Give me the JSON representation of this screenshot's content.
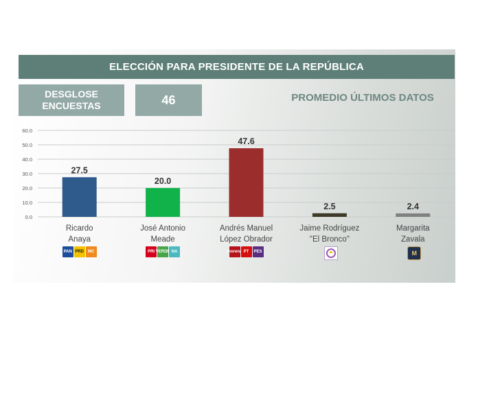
{
  "header": {
    "title": "ELECCIÓN PARA PRESIDENTE DE LA REPÚBLICA",
    "desglose_label": "DESGLOSE ENCUESTAS",
    "count": "46",
    "promedio_label": "PROMEDIO ÚLTIMOS DATOS"
  },
  "colors": {
    "banner": "#5e7f77",
    "box": "#93a9a5"
  },
  "chart_data": {
    "type": "bar",
    "categories": [
      "Ricardo\nAnaya",
      "José Antonio\nMeade",
      "Andrés Manuel\nLópez Obrador",
      "Jaime Rodríguez\n\"El Bronco\"",
      "Margarita\nZavala"
    ],
    "values": [
      27.5,
      20.0,
      47.6,
      2.5,
      2.4
    ],
    "value_labels": [
      "27.5",
      "20.0",
      "47.6",
      "2.5",
      "2.4"
    ],
    "colors": [
      "#2e5a8c",
      "#12b24b",
      "#9b2d2d",
      "#3e3a28",
      "#808080"
    ],
    "ylim": [
      0,
      60
    ],
    "yticks": [
      "0.0",
      "10.0",
      "20.0",
      "30.0",
      "40.0",
      "50.0",
      "60.0"
    ],
    "grid": true,
    "title": "",
    "xlabel": "",
    "ylabel": ""
  },
  "party_logos": [
    [
      {
        "icon": "pan-logo",
        "text": "PAN",
        "color": "#1c4c9c"
      },
      {
        "icon": "prd-logo",
        "text": "PRD",
        "color": "#f3c300"
      },
      {
        "icon": "mc-logo",
        "text": "MC",
        "color": "#f08a1c"
      }
    ],
    [
      {
        "icon": "pri-logo",
        "text": "PRI",
        "color": "#d6001c"
      },
      {
        "icon": "pvem-logo",
        "text": "VERDE",
        "color": "#47a447"
      },
      {
        "icon": "nueva-alianza-logo",
        "text": "NA",
        "color": "#4bb9c0"
      }
    ],
    [
      {
        "icon": "morena-logo",
        "text": "morena",
        "color": "#b5121b"
      },
      {
        "icon": "pt-logo",
        "text": "PT",
        "color": "#d50f0f"
      },
      {
        "icon": "pes-logo",
        "text": "PES",
        "color": "#5a2d82"
      }
    ],
    [
      {
        "icon": "independiente-logo",
        "text": "",
        "color": "#9b59b6"
      }
    ],
    [
      {
        "icon": "zavala-logo",
        "text": "M",
        "color": "#1f2f4f"
      }
    ]
  ]
}
